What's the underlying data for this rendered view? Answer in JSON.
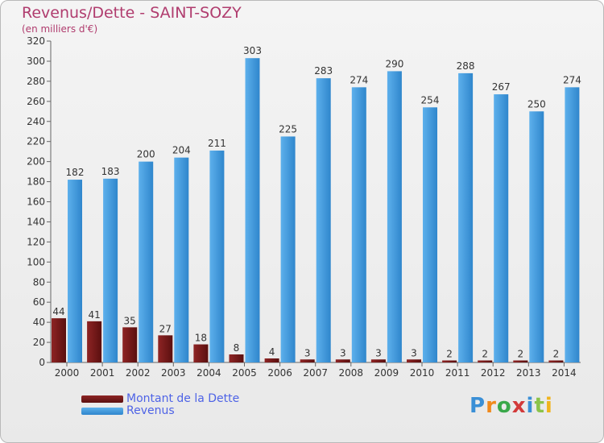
{
  "title": "Revenus/Dette - SAINT-SOZY",
  "subtitle": "(en milliers d'€)",
  "colors": {
    "dette": "#7a1c1c",
    "revenus": "#4aa0e0",
    "title": "#b03c6e",
    "legend_text": "#4e63e6"
  },
  "chart_data": {
    "type": "bar",
    "title": "Revenus/Dette - SAINT-SOZY",
    "subtitle": "(en milliers d'€)",
    "categories": [
      "2000",
      "2001",
      "2002",
      "2003",
      "2004",
      "2005",
      "2006",
      "2007",
      "2008",
      "2009",
      "2010",
      "2011",
      "2012",
      "2013",
      "2014"
    ],
    "series": [
      {
        "name": "Montant de la Dette",
        "values": [
          44,
          41,
          35,
          27,
          18,
          8,
          4,
          3,
          3,
          3,
          3,
          2,
          2,
          2,
          2
        ]
      },
      {
        "name": "Revenus",
        "values": [
          182,
          183,
          200,
          204,
          211,
          303,
          225,
          283,
          274,
          290,
          254,
          288,
          267,
          250,
          274
        ]
      }
    ],
    "ylim": [
      0,
      320
    ],
    "yticks": [
      0,
      20,
      40,
      60,
      80,
      100,
      120,
      140,
      160,
      180,
      200,
      220,
      240,
      260,
      280,
      300,
      320
    ],
    "grid": false,
    "legend_position": "bottom-left"
  },
  "legend": [
    {
      "label": "Montant de la Dette"
    },
    {
      "label": "Revenus"
    }
  ],
  "logo": {
    "text": "Proxiti"
  }
}
